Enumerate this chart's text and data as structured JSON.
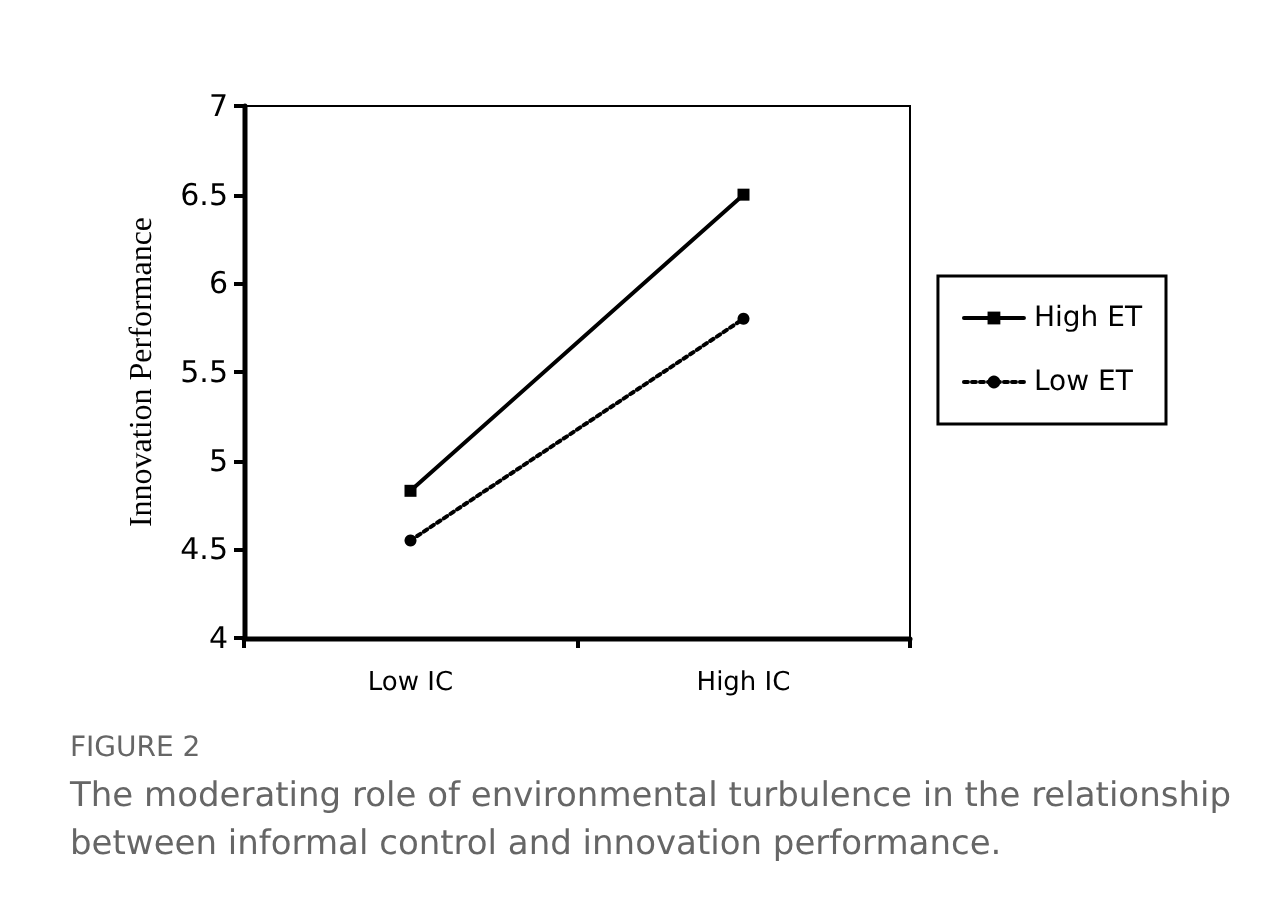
{
  "chart_data": {
    "type": "line",
    "ylabel": "Innovation Performance",
    "categories": [
      "Low IC",
      "High IC"
    ],
    "series": [
      {
        "name": "High ET",
        "color": "#000000",
        "values": [
          4.83,
          6.5
        ],
        "line_style": "solid",
        "marker": "square"
      },
      {
        "name": "Low ET",
        "color": "#000000",
        "values": [
          4.55,
          5.8
        ],
        "line_style": "dotted",
        "marker": "circle"
      }
    ],
    "ylim": [
      4,
      7
    ],
    "yticks": [
      4,
      4.5,
      5,
      5.5,
      6,
      6.5,
      7
    ],
    "grid": false,
    "legend": "right",
    "annotations": [
      "FIGURE 2",
      "The moderating role of environmental turbulence in the relationship between informal control and innovation performance."
    ]
  }
}
